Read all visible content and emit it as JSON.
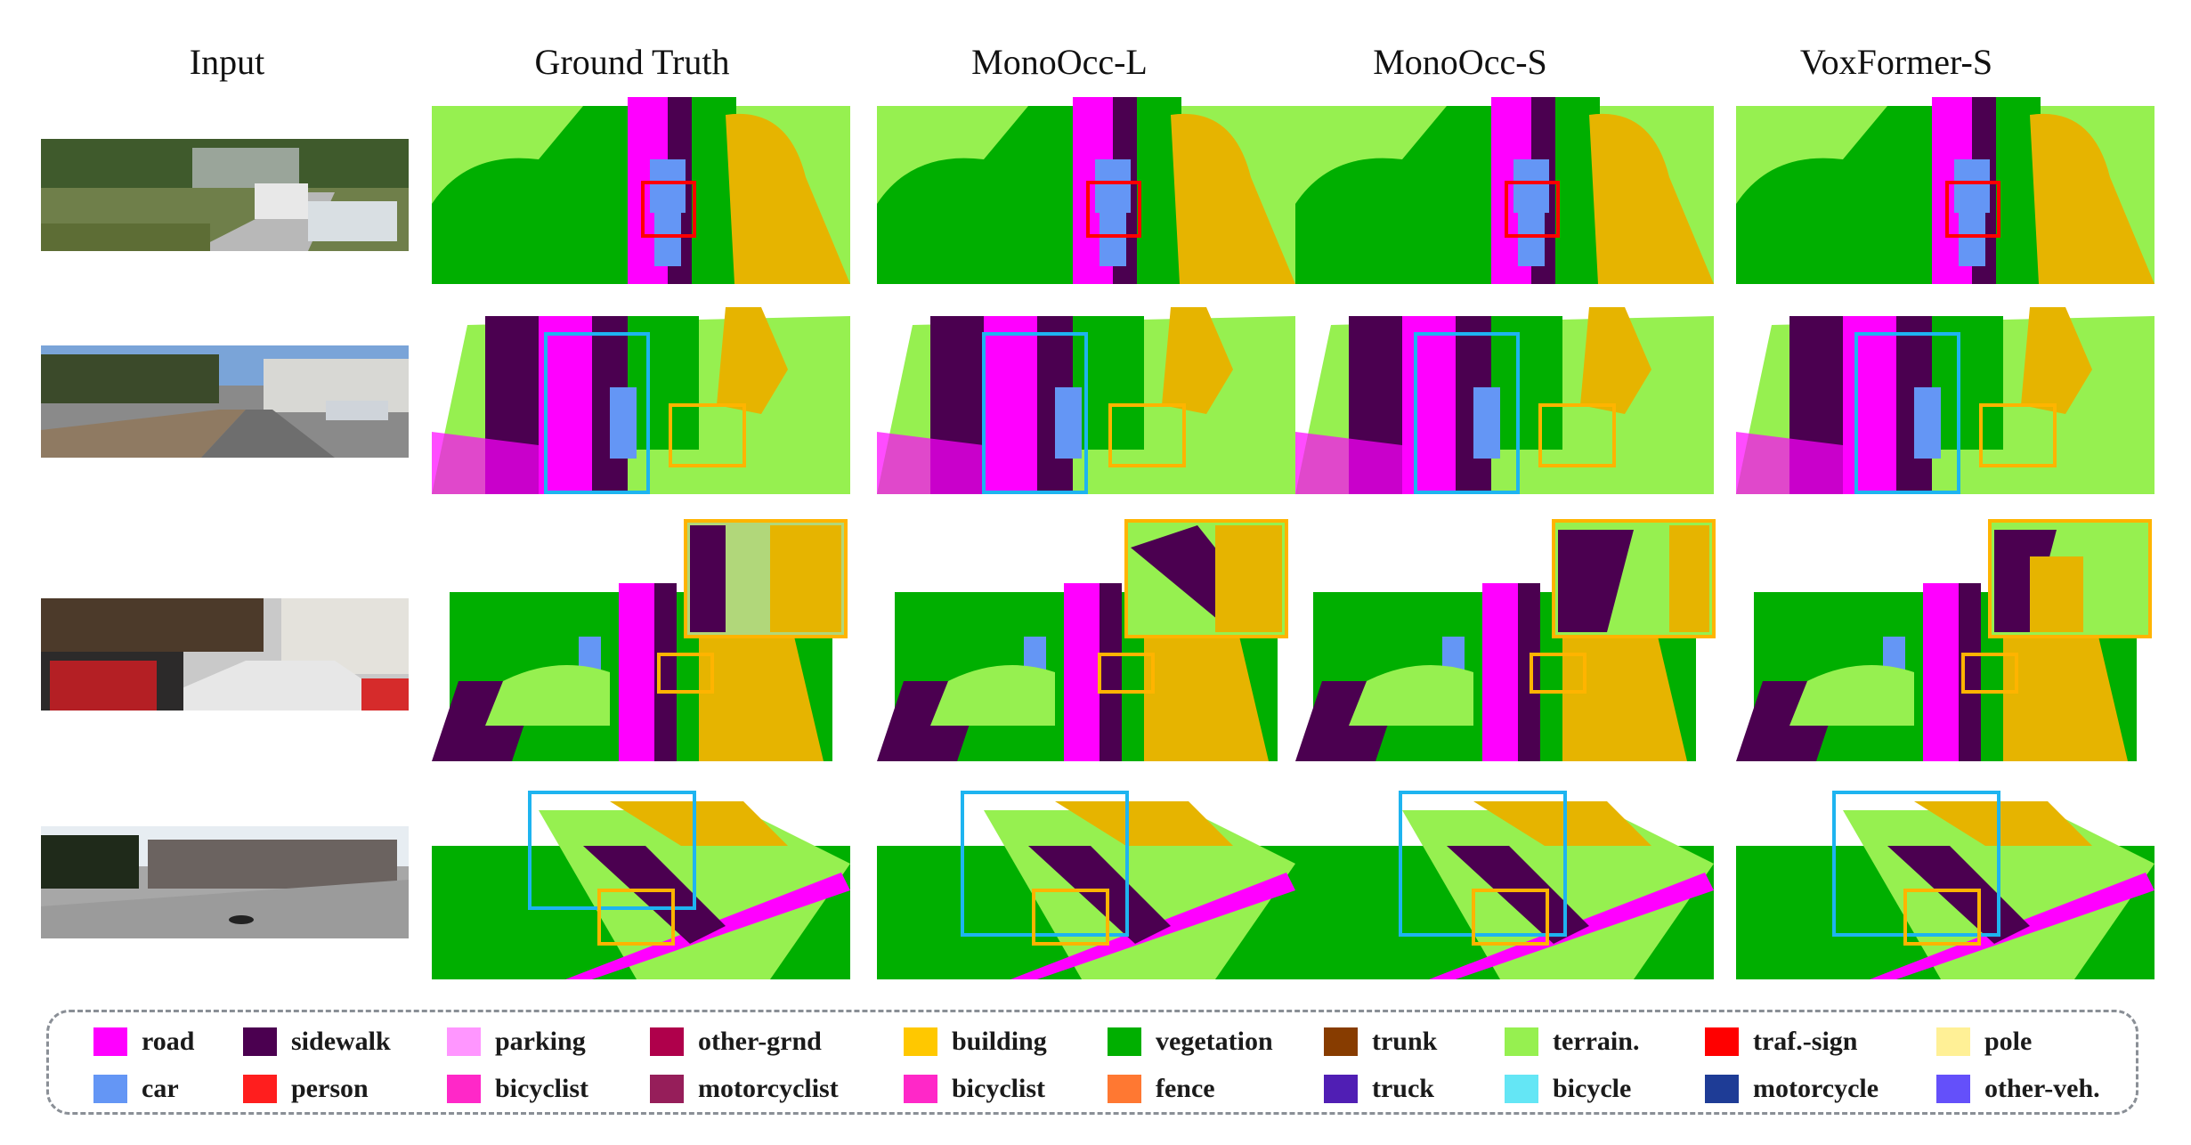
{
  "headers": {
    "input": "Input",
    "ground_truth": "Ground Truth",
    "monoocc_l": "MonoOcc-L",
    "monoocc_s": "MonoOcc-S",
    "voxformer_s": "VoxFormer-S"
  },
  "colors": {
    "road": "#ff00ff",
    "sidewalk": "#4b0050",
    "parking": "#ff96ff",
    "building": "#e6b400",
    "vegetation": "#00af00",
    "terrain": "#96f050",
    "car": "#6496f5",
    "box_red": "#ff0000",
    "box_blue": "#1eb4f0",
    "box_orange": "#ffb400",
    "trunk": "#873c00",
    "legend_border": "#8a8f96"
  },
  "legend": {
    "row1": [
      {
        "label": "road",
        "color": "#ff00ff"
      },
      {
        "label": "sidewalk",
        "color": "#4b0050"
      },
      {
        "label": "parking",
        "color": "#ff96ff"
      },
      {
        "label": "other-grnd",
        "color": "#af004b"
      },
      {
        "label": "building",
        "color": "#ffc800"
      },
      {
        "label": "vegetation",
        "color": "#00af00"
      },
      {
        "label": "trunk",
        "color": "#873c00"
      },
      {
        "label": "terrain.",
        "color": "#96f050"
      },
      {
        "label": "traf.-sign",
        "color": "#ff0000"
      },
      {
        "label": "pole",
        "color": "#fff096"
      }
    ],
    "row2": [
      {
        "label": "car",
        "color": "#6496f5"
      },
      {
        "label": "person",
        "color": "#ff1e1e"
      },
      {
        "label": "bicyclist",
        "color": "#ff28c8"
      },
      {
        "label": "motorcyclist",
        "color": "#961e5a"
      },
      {
        "label": "bicyclist",
        "color": "#ff28c8"
      },
      {
        "label": "fence",
        "color": "#ff7832"
      },
      {
        "label": "truck",
        "color": "#501eb4"
      },
      {
        "label": "bicycle",
        "color": "#64e6f5"
      },
      {
        "label": "motorcycle",
        "color": "#1e3c96"
      },
      {
        "label": "other-veh.",
        "color": "#6450fa"
      }
    ]
  }
}
